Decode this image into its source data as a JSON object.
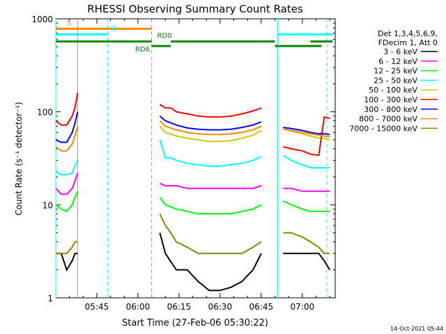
{
  "chart_data": {
    "type": "line",
    "title": "RHESSI Observing Summary Count Rates",
    "xlabel": "Start Time (27-Feb-06 05:30:22)",
    "ylabel": "Count Rate (s⁻¹ detector⁻¹)",
    "y_scale": "log",
    "ylim": [
      1,
      1000
    ],
    "xlim_minutes": [
      0,
      102
    ],
    "x_ticks": [
      {
        "label": "05:45",
        "minute": 15
      },
      {
        "label": "06:00",
        "minute": 30
      },
      {
        "label": "06:15",
        "minute": 45
      },
      {
        "label": "06:30",
        "minute": 60
      },
      {
        "label": "06:45",
        "minute": 75
      },
      {
        "label": "07:00",
        "minute": 90
      }
    ],
    "y_ticks": [
      {
        "label": "1",
        "value": 1
      },
      {
        "label": "10",
        "value": 10
      },
      {
        "label": "100",
        "value": 100
      },
      {
        "label": "1000",
        "value": 1000
      }
    ],
    "legend": {
      "placement": "right",
      "header": [
        "Det 1,3,4,5,6,9,",
        "FDecim 1, Att 0"
      ]
    },
    "series": [
      {
        "name": "3 - 6 keV",
        "color": "#000000",
        "points": [
          [
            0,
            3
          ],
          [
            2,
            3
          ],
          [
            4,
            2
          ],
          [
            6,
            2.5
          ],
          [
            7,
            3
          ],
          [
            8,
            3
          ],
          [
            12,
            0
          ],
          [
            37,
            0
          ],
          [
            38,
            5
          ],
          [
            40,
            3
          ],
          [
            44,
            2
          ],
          [
            48,
            2
          ],
          [
            52,
            1.5
          ],
          [
            56,
            1.2
          ],
          [
            60,
            1.2
          ],
          [
            64,
            1.3
          ],
          [
            68,
            1.5
          ],
          [
            72,
            2
          ],
          [
            75,
            3
          ],
          [
            76,
            0
          ],
          [
            82,
            0
          ],
          [
            83,
            3
          ],
          [
            86,
            3
          ],
          [
            90,
            3
          ],
          [
            93,
            3
          ],
          [
            96,
            3
          ],
          [
            98,
            2.5
          ],
          [
            100,
            2
          ]
        ]
      },
      {
        "name": "6 - 12 keV",
        "color": "#ff00ff",
        "points": [
          [
            0,
            15
          ],
          [
            2,
            13
          ],
          [
            4,
            13
          ],
          [
            6,
            15
          ],
          [
            7,
            18
          ],
          [
            8,
            22
          ],
          [
            12,
            0
          ],
          [
            37,
            0
          ],
          [
            38,
            17
          ],
          [
            40,
            16
          ],
          [
            44,
            16
          ],
          [
            48,
            15
          ],
          [
            52,
            15
          ],
          [
            56,
            15
          ],
          [
            60,
            15
          ],
          [
            64,
            15
          ],
          [
            68,
            15
          ],
          [
            72,
            15
          ],
          [
            75,
            16
          ],
          [
            76,
            0
          ],
          [
            82,
            0
          ],
          [
            83,
            15
          ],
          [
            86,
            15
          ],
          [
            90,
            14
          ],
          [
            93,
            14
          ],
          [
            96,
            14
          ],
          [
            98,
            14
          ],
          [
            100,
            14
          ]
        ]
      },
      {
        "name": "12 - 25 keV",
        "color": "#00ff00",
        "points": [
          [
            0,
            10
          ],
          [
            2,
            9
          ],
          [
            4,
            8.5
          ],
          [
            6,
            10
          ],
          [
            7,
            12
          ],
          [
            8,
            14
          ],
          [
            12,
            0
          ],
          [
            37,
            0
          ],
          [
            38,
            12
          ],
          [
            40,
            10
          ],
          [
            44,
            9
          ],
          [
            48,
            8.5
          ],
          [
            52,
            8
          ],
          [
            56,
            8
          ],
          [
            60,
            8
          ],
          [
            64,
            8
          ],
          [
            68,
            8.5
          ],
          [
            72,
            9
          ],
          [
            75,
            10
          ],
          [
            76,
            0
          ],
          [
            82,
            0
          ],
          [
            83,
            11
          ],
          [
            86,
            10
          ],
          [
            90,
            9
          ],
          [
            93,
            8.5
          ],
          [
            96,
            8.5
          ],
          [
            98,
            8.5
          ],
          [
            100,
            8.5
          ]
        ]
      },
      {
        "name": "25 - 50 keV",
        "color": "#00ffff",
        "points": [
          [
            0,
            23
          ],
          [
            2,
            21
          ],
          [
            4,
            21
          ],
          [
            6,
            22
          ],
          [
            7,
            26
          ],
          [
            8,
            30
          ],
          [
            12,
            0
          ],
          [
            37,
            0
          ],
          [
            38,
            50
          ],
          [
            40,
            32
          ],
          [
            42,
            32
          ],
          [
            44,
            30
          ],
          [
            48,
            28
          ],
          [
            52,
            27
          ],
          [
            56,
            26
          ],
          [
            60,
            26
          ],
          [
            64,
            27
          ],
          [
            68,
            28
          ],
          [
            72,
            30
          ],
          [
            75,
            33
          ],
          [
            76,
            0
          ],
          [
            82,
            0
          ],
          [
            83,
            34
          ],
          [
            86,
            30
          ],
          [
            90,
            27
          ],
          [
            93,
            25
          ],
          [
            96,
            25
          ],
          [
            98,
            25
          ],
          [
            100,
            25
          ]
        ]
      },
      {
        "name": "50 - 100 keV",
        "color": "#cccc00",
        "points": [
          [
            37,
            0
          ],
          [
            38,
            70
          ],
          [
            40,
            60
          ],
          [
            44,
            55
          ],
          [
            48,
            52
          ],
          [
            52,
            50
          ],
          [
            56,
            48
          ],
          [
            60,
            48
          ],
          [
            64,
            49
          ],
          [
            68,
            52
          ],
          [
            72,
            56
          ],
          [
            75,
            63
          ],
          [
            76,
            0
          ],
          [
            82,
            0
          ],
          [
            83,
            65
          ],
          [
            86,
            62
          ],
          [
            90,
            58
          ],
          [
            93,
            55
          ],
          [
            96,
            52
          ],
          [
            98,
            52
          ],
          [
            100,
            50
          ]
        ]
      },
      {
        "name": "100 - 300 keV",
        "color": "#ff0000",
        "points": [
          [
            0,
            80
          ],
          [
            2,
            72
          ],
          [
            4,
            72
          ],
          [
            6,
            90
          ],
          [
            7,
            110
          ],
          [
            8,
            160
          ],
          [
            12,
            0
          ],
          [
            37,
            0
          ],
          [
            38,
            120
          ],
          [
            40,
            110
          ],
          [
            42,
            110
          ],
          [
            44,
            100
          ],
          [
            48,
            95
          ],
          [
            52,
            90
          ],
          [
            56,
            88
          ],
          [
            60,
            88
          ],
          [
            64,
            90
          ],
          [
            68,
            95
          ],
          [
            72,
            102
          ],
          [
            75,
            110
          ],
          [
            76,
            0
          ],
          [
            82,
            0
          ],
          [
            83,
            42
          ],
          [
            86,
            40
          ],
          [
            90,
            38
          ],
          [
            93,
            35
          ],
          [
            96,
            34
          ],
          [
            98,
            88
          ],
          [
            100,
            85
          ]
        ]
      },
      {
        "name": "300 - 800 keV",
        "color": "#0000ff",
        "points": [
          [
            0,
            50
          ],
          [
            2,
            47
          ],
          [
            4,
            47
          ],
          [
            6,
            60
          ],
          [
            7,
            75
          ],
          [
            8,
            100
          ],
          [
            12,
            0
          ],
          [
            37,
            0
          ],
          [
            38,
            90
          ],
          [
            40,
            80
          ],
          [
            44,
            72
          ],
          [
            48,
            67
          ],
          [
            52,
            65
          ],
          [
            56,
            64
          ],
          [
            60,
            64
          ],
          [
            64,
            65
          ],
          [
            68,
            68
          ],
          [
            72,
            72
          ],
          [
            75,
            78
          ],
          [
            76,
            0
          ],
          [
            82,
            0
          ],
          [
            83,
            68
          ],
          [
            86,
            66
          ],
          [
            90,
            63
          ],
          [
            93,
            60
          ],
          [
            96,
            58
          ],
          [
            98,
            58
          ],
          [
            100,
            57
          ]
        ]
      },
      {
        "name": "800 - 7000 keV",
        "color": "#ff8800",
        "points": [
          [
            0,
            42
          ],
          [
            2,
            38
          ],
          [
            4,
            38
          ],
          [
            6,
            45
          ],
          [
            7,
            55
          ],
          [
            8,
            70
          ],
          [
            12,
            0
          ],
          [
            37,
            0
          ],
          [
            38,
            80
          ],
          [
            40,
            70
          ],
          [
            44,
            64
          ],
          [
            48,
            60
          ],
          [
            52,
            58
          ],
          [
            56,
            57
          ],
          [
            60,
            57
          ],
          [
            64,
            58
          ],
          [
            68,
            60
          ],
          [
            72,
            64
          ],
          [
            75,
            70
          ],
          [
            76,
            0
          ],
          [
            82,
            0
          ],
          [
            83,
            65
          ],
          [
            86,
            63
          ],
          [
            90,
            60
          ],
          [
            93,
            58
          ],
          [
            96,
            56
          ],
          [
            98,
            55
          ],
          [
            100,
            54
          ]
        ]
      },
      {
        "name": "7000 - 15000 keV",
        "color": "#888800",
        "points": [
          [
            0,
            3
          ],
          [
            2,
            3
          ],
          [
            4,
            3
          ],
          [
            6,
            3.5
          ],
          [
            7,
            4
          ],
          [
            8,
            4
          ],
          [
            12,
            0
          ],
          [
            37,
            0
          ],
          [
            38,
            8
          ],
          [
            40,
            6
          ],
          [
            42,
            5
          ],
          [
            44,
            4
          ],
          [
            48,
            3.5
          ],
          [
            52,
            3
          ],
          [
            56,
            3
          ],
          [
            60,
            3
          ],
          [
            64,
            3
          ],
          [
            68,
            3
          ],
          [
            72,
            3.5
          ],
          [
            75,
            4
          ],
          [
            76,
            0
          ],
          [
            82,
            0
          ],
          [
            83,
            5
          ],
          [
            86,
            5
          ],
          [
            90,
            4.5
          ],
          [
            93,
            4
          ],
          [
            96,
            3.5
          ],
          [
            98,
            3
          ],
          [
            100,
            3
          ]
        ]
      }
    ],
    "vertical_markers": [
      {
        "minute": 0,
        "color": "#00ffff",
        "style": "solid"
      },
      {
        "minute": 8,
        "color": "#ff8800",
        "style": "solid"
      },
      {
        "minute": 19,
        "color": "#00ffff",
        "style": "dashed"
      },
      {
        "minute": 35,
        "color": "#ff8800",
        "style": "dashed"
      },
      {
        "minute": 81,
        "color": "#00ffff",
        "style": "solid"
      },
      {
        "minute": 99,
        "color": "#00ffff",
        "style": "dashed"
      }
    ],
    "flag_bars": [
      {
        "label": "S",
        "color": "#ff8800",
        "value": 780,
        "segments": [
          [
            0,
            8
          ],
          [
            8,
            35
          ]
        ],
        "label_minute": 4
      },
      {
        "label": "N",
        "color": "#00ffff",
        "value": 680,
        "segments": [
          [
            0,
            19
          ],
          [
            81,
            101
          ]
        ],
        "label_minute": 20
      },
      {
        "label": "RD0",
        "color": "#008800",
        "value": 570,
        "segments": [
          [
            0,
            35
          ],
          [
            42,
            80
          ],
          [
            93,
            101
          ]
        ],
        "label_minute": 37
      },
      {
        "label": "RD6",
        "color": "#008800",
        "value": 510,
        "segments": [
          [
            35,
            42
          ],
          [
            80,
            97
          ]
        ],
        "label_minute": 29
      }
    ]
  },
  "footer": {
    "timestamp": "14-Oct-2021 05:44"
  }
}
